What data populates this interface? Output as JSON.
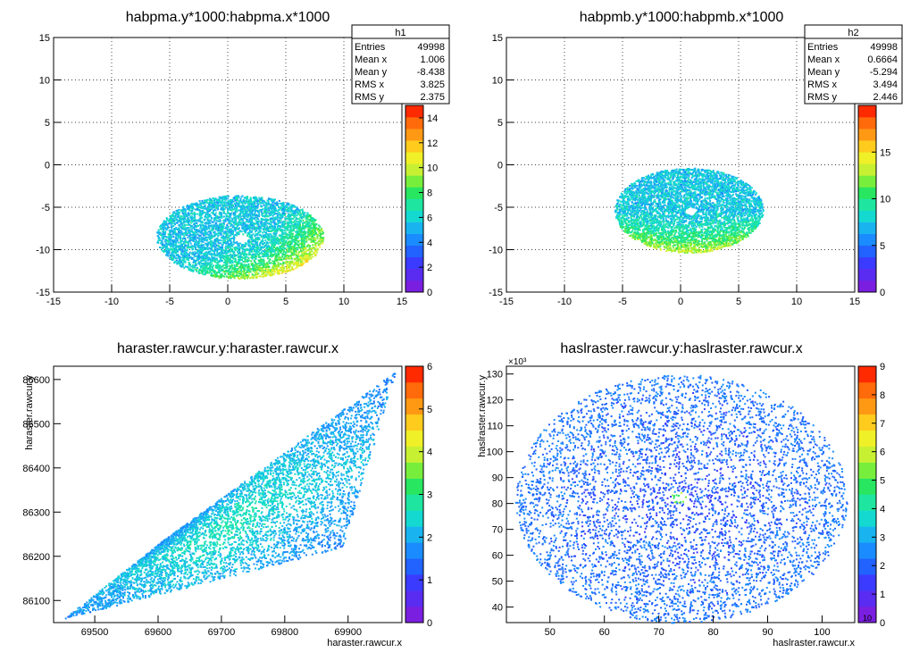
{
  "chart_data": [
    {
      "type": "heatmap",
      "title": "habpma.y*1000:habpma.x*1000",
      "xlabel": "",
      "ylabel": "",
      "xlim": [
        -15,
        15
      ],
      "ylim": [
        -15,
        15
      ],
      "xticks": [
        -15,
        -10,
        -5,
        0,
        5,
        10,
        15
      ],
      "yticks": [
        -15,
        -10,
        -5,
        0,
        5,
        10,
        15
      ],
      "grid": true,
      "exponent_label": "",
      "colorbar": {
        "min": 0,
        "max": 15,
        "ticks": [
          0,
          2,
          4,
          6,
          8,
          10,
          12,
          14
        ]
      },
      "blob": {
        "cx": 1.006,
        "cy": -8.438,
        "rx": 7.2,
        "ry": 4.9,
        "density": "higher toward lower-right edge",
        "hole_x": 1.1,
        "hole_y": -8.6
      },
      "stats": {
        "name": "h1",
        "rows": [
          {
            "label": "Entries",
            "value": "49998"
          },
          {
            "label": "Mean x",
            "value": "1.006"
          },
          {
            "label": "Mean y",
            "value": "-8.438"
          },
          {
            "label": "RMS x",
            "value": "3.825"
          },
          {
            "label": "RMS y",
            "value": "2.375"
          }
        ]
      }
    },
    {
      "type": "heatmap",
      "title": "habpmb.y*1000:habpmb.x*1000",
      "xlabel": "",
      "ylabel": "",
      "xlim": [
        -15,
        15
      ],
      "ylim": [
        -15,
        15
      ],
      "xticks": [
        -15,
        -10,
        -5,
        0,
        5,
        10,
        15
      ],
      "yticks": [
        -15,
        -10,
        -5,
        0,
        5,
        10,
        15
      ],
      "grid": true,
      "exponent_label": "",
      "colorbar": {
        "min": 0,
        "max": 20,
        "ticks": [
          0,
          5,
          10,
          15
        ]
      },
      "blob": {
        "cx": 0.6664,
        "cy": -5.294,
        "rx": 6.4,
        "ry": 5.0,
        "density": "higher toward lower edge",
        "hole_x": 0.8,
        "hole_y": -5.4
      },
      "stats": {
        "name": "h2",
        "rows": [
          {
            "label": "Entries",
            "value": "49998"
          },
          {
            "label": "Mean x",
            "value": "0.6664"
          },
          {
            "label": "Mean y",
            "value": "-5.294"
          },
          {
            "label": "RMS x",
            "value": "3.494"
          },
          {
            "label": "RMS y",
            "value": "2.446"
          }
        ]
      }
    },
    {
      "type": "heatmap",
      "title": "haraster.rawcur.y:haraster.rawcur.x",
      "xlabel": "haraster.rawcur.x",
      "ylabel": "haraster.rawcur.y",
      "xlim": [
        69435,
        69985
      ],
      "ylim": [
        86050,
        86630
      ],
      "xticks": [
        69500,
        69600,
        69700,
        69800,
        69900
      ],
      "yticks": [
        86100,
        86200,
        86300,
        86400,
        86500,
        86600
      ],
      "grid": false,
      "exponent_label": "",
      "colorbar": {
        "min": 0,
        "max": 6,
        "ticks": [
          0,
          1,
          2,
          3,
          4,
          5,
          6
        ]
      },
      "blob": {
        "shape": "slanted band",
        "corners_x": [
          69450,
          69610,
          69975,
          69890
        ],
        "corners_y": [
          86060,
          86240,
          86620,
          86220
        ]
      },
      "stats": null
    },
    {
      "type": "heatmap",
      "title": "haslraster.rawcur.y:haslraster.rawcur.x",
      "xlabel": "haslraster.rawcur.x",
      "ylabel": "haslraster.rawcur.y",
      "xlim": [
        42,
        106
      ],
      "ylim": [
        34,
        133
      ],
      "xticks": [
        50,
        60,
        70,
        80,
        90,
        100
      ],
      "yticks": [
        40,
        50,
        60,
        70,
        80,
        90,
        100,
        110,
        120,
        130
      ],
      "grid": false,
      "exponent_label": "×10³",
      "colorbar": {
        "min": 0,
        "max": 9,
        "ticks": [
          0,
          1,
          2,
          3,
          4,
          5,
          6,
          7,
          8,
          9
        ],
        "bottom_label": "10"
      },
      "blob": {
        "cx": 74,
        "cy": 82,
        "rx": 30.5,
        "ry": 48,
        "hotspot_x": 73.5,
        "hotspot_y": 82.5
      },
      "stats": null
    }
  ]
}
